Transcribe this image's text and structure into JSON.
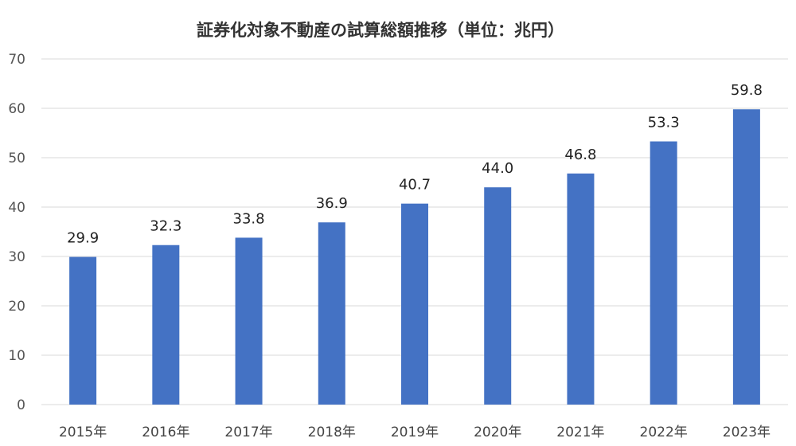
{
  "chart_data": {
    "type": "bar",
    "title": "証券化対象不動産の試算総額推移（単位：兆円）",
    "xlabel": "",
    "ylabel": "",
    "categories": [
      "2015年",
      "2016年",
      "2017年",
      "2018年",
      "2019年",
      "2020年",
      "2021年",
      "2022年",
      "2023年"
    ],
    "values": [
      29.9,
      32.3,
      33.8,
      36.9,
      40.7,
      44.0,
      46.8,
      53.3,
      59.8
    ],
    "value_labels": [
      "29.9",
      "32.3",
      "33.8",
      "36.9",
      "40.7",
      "44.0",
      "46.8",
      "53.3",
      "59.8"
    ],
    "ylim": [
      0,
      70
    ],
    "y_ticks": [
      0,
      10,
      20,
      30,
      40,
      50,
      60,
      70
    ],
    "grid": true,
    "legend": "none",
    "colors": {
      "bar": "#4472c4",
      "grid": "#d9d9d9"
    }
  }
}
